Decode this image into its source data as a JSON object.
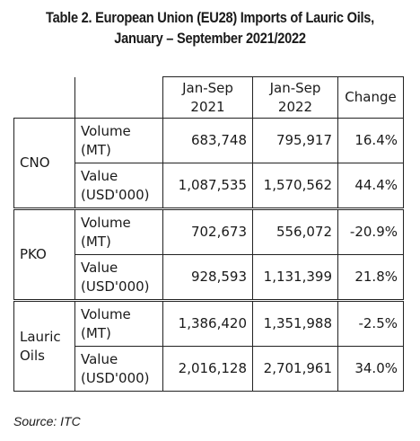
{
  "title": {
    "line1": "Table 2. European Union (EU28) Imports of Lauric Oils,",
    "line2": "January – September 2021/2022"
  },
  "table": {
    "headers": {
      "col1": "Jan-Sep\n2021",
      "col1_line1": "Jan-Sep",
      "col1_line2": "2021",
      "col2_line1": "Jan-Sep",
      "col2_line2": "2022",
      "col3": "Change"
    },
    "groups": [
      {
        "product": "CNO",
        "rows": [
          {
            "metric_line1": "Volume",
            "metric_line2": "(MT)",
            "v2021": "683,748",
            "v2022": "795,917",
            "change": "16.4%"
          },
          {
            "metric_line1": "Value",
            "metric_line2": "(USD'000)",
            "v2021": "1,087,535",
            "v2022": "1,570,562",
            "change": "44.4%"
          }
        ]
      },
      {
        "product": "PKO",
        "rows": [
          {
            "metric_line1": "Volume",
            "metric_line2": "(MT)",
            "v2021": "702,673",
            "v2022": "556,072",
            "change": "-20.9%"
          },
          {
            "metric_line1": "Value",
            "metric_line2": "(USD'000)",
            "v2021": "928,593",
            "v2022": "1,131,399",
            "change": "21.8%"
          }
        ]
      },
      {
        "product_line1": "Lauric",
        "product_line2": "Oils",
        "rows": [
          {
            "metric_line1": "Volume",
            "metric_line2": "(MT)",
            "v2021": "1,386,420",
            "v2022": "1,351,988",
            "change": "-2.5%"
          },
          {
            "metric_line1": "Value",
            "metric_line2": "(USD'000)",
            "v2021": "2,016,128",
            "v2022": "2,701,961",
            "change": "34.0%"
          }
        ]
      }
    ]
  },
  "source": "Source: ITC"
}
